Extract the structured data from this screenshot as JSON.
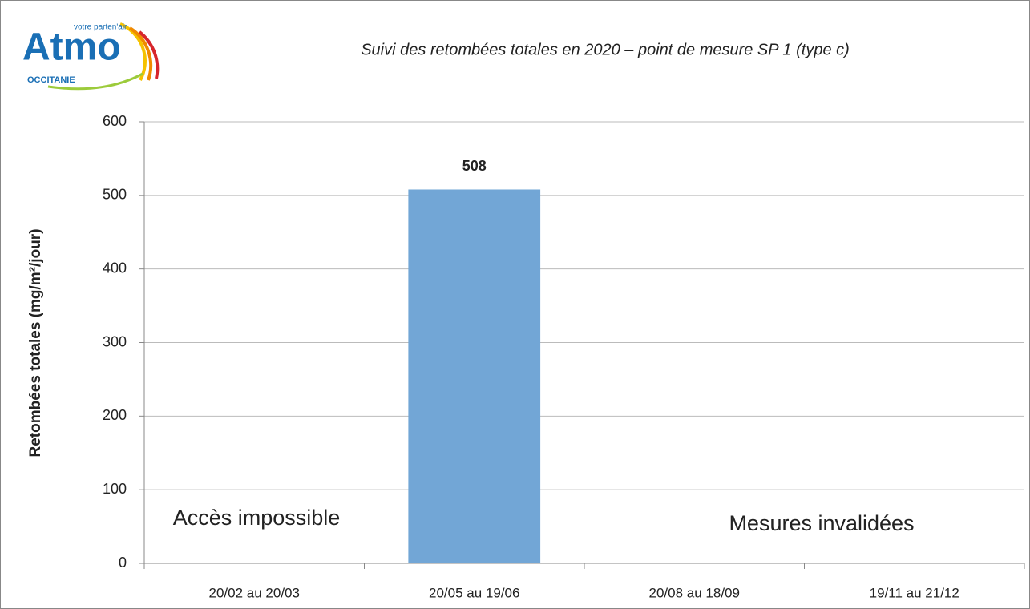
{
  "logo": {
    "name": "Atmo",
    "tagline": "votre parten'air",
    "region": "OCCITANIE"
  },
  "chart_data": {
    "type": "bar",
    "title": "Suivi des retombées totales en 2020 – point de mesure SP 1 (type c)",
    "y_label": "Retombées totales (mg/m²/jour)",
    "categories": [
      "20/02 au 20/03",
      "20/05 au 19/06",
      "20/08 au 18/09",
      "19/11 au 21/12"
    ],
    "values": [
      null,
      508,
      null,
      null
    ],
    "color": "#72a6d6",
    "ylim": [
      0,
      600
    ],
    "yticks": [
      0,
      100,
      200,
      300,
      400,
      500,
      600
    ],
    "grid": true,
    "annotations": [
      "Accès impossible",
      "Mesures invalidées"
    ]
  }
}
